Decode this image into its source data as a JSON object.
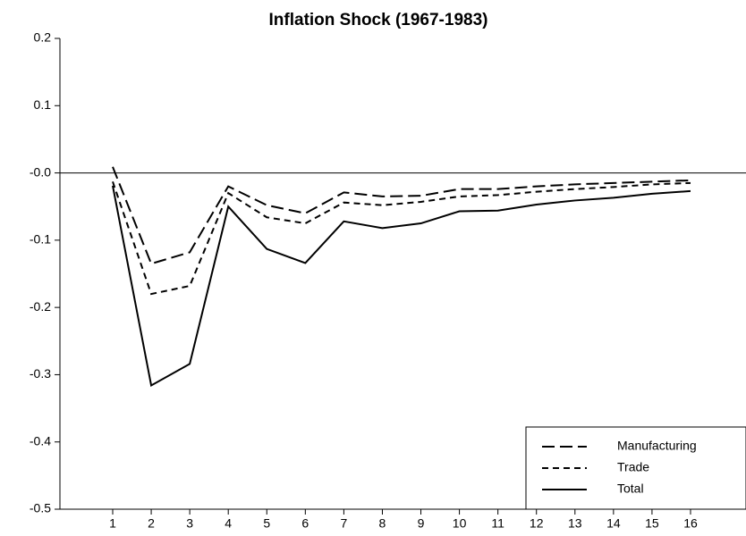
{
  "chart_data": {
    "type": "line",
    "title": "Inflation Shock (1967-1983)",
    "x": [
      1,
      2,
      3,
      4,
      5,
      6,
      7,
      8,
      9,
      10,
      11,
      12,
      13,
      14,
      15,
      16
    ],
    "series": [
      {
        "name": "Manufacturing",
        "color": "#000000",
        "dash": "14,6",
        "values": [
          0.009,
          -0.135,
          -0.118,
          -0.02,
          -0.048,
          -0.06,
          -0.029,
          -0.035,
          -0.034,
          -0.024,
          -0.024,
          -0.02,
          -0.017,
          -0.015,
          -0.013,
          -0.011
        ]
      },
      {
        "name": "Trade",
        "color": "#000000",
        "dash": "7,5",
        "values": [
          -0.013,
          -0.18,
          -0.168,
          -0.03,
          -0.066,
          -0.075,
          -0.044,
          -0.048,
          -0.043,
          -0.035,
          -0.033,
          -0.028,
          -0.024,
          -0.021,
          -0.017,
          -0.015
        ]
      },
      {
        "name": "Total",
        "color": "#000000",
        "dash": "none",
        "values": [
          -0.019,
          -0.316,
          -0.284,
          -0.05,
          -0.113,
          -0.134,
          -0.072,
          -0.082,
          -0.075,
          -0.057,
          -0.056,
          -0.047,
          -0.041,
          -0.037,
          -0.031,
          -0.027
        ]
      }
    ],
    "xlim": [
      -0.37,
      17.44
    ],
    "xticks": [
      1,
      2,
      3,
      4,
      5,
      6,
      7,
      8,
      9,
      10,
      11,
      12,
      13,
      14,
      15,
      16
    ],
    "ylim": [
      -0.5,
      0.2
    ],
    "yticks": [
      -0.5,
      -0.4,
      -0.3,
      -0.2,
      -0.1,
      {
        "value": 0,
        "label": "-0.0"
      },
      0.1,
      0.2
    ],
    "reference_line": 0,
    "legend": "lower right"
  }
}
